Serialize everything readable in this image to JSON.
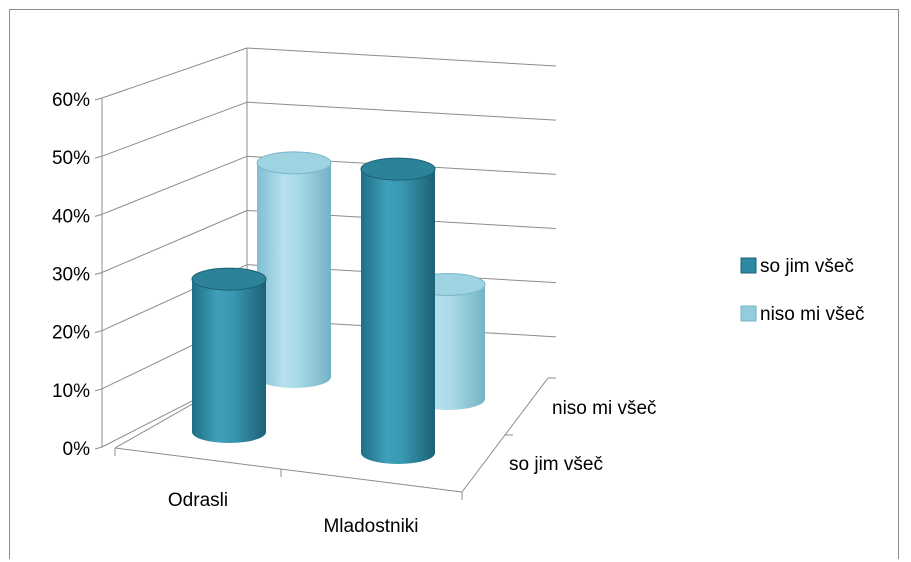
{
  "chart_data": {
    "type": "bar",
    "subtype": "3d-cylinder",
    "categories": [
      "Odrasli",
      "Mladostniki"
    ],
    "series": [
      {
        "name": "so jim všeč",
        "values": [
          28,
          52
        ],
        "color": "#2e8aa3"
      },
      {
        "name": "niso mi všeč",
        "values": [
          43,
          23
        ],
        "color": "#93cddd"
      }
    ],
    "ylim": [
      0,
      60
    ],
    "yticks": [
      "0%",
      "10%",
      "20%",
      "30%",
      "40%",
      "50%",
      "60%"
    ],
    "depth_labels": [
      "so jim všeč",
      "niso mi všeč"
    ],
    "grid": true,
    "legend": "right"
  }
}
